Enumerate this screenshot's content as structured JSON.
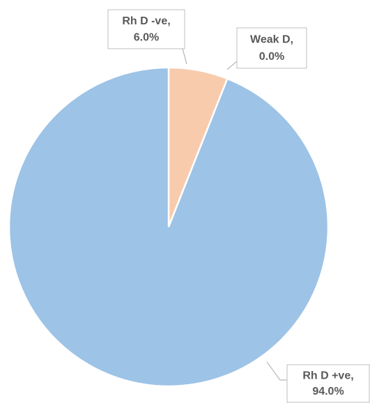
{
  "chart_data": {
    "type": "pie",
    "categories": [
      "Rh D -ve,",
      "Weak D,",
      "Rh D +ve,"
    ],
    "values": [
      6.0,
      0.0,
      94.0
    ],
    "value_labels": [
      "6.0%",
      "0.0%",
      "94.0%"
    ],
    "colors": [
      "#f8cbad",
      "#c9c9c9",
      "#9dc3e6"
    ]
  }
}
